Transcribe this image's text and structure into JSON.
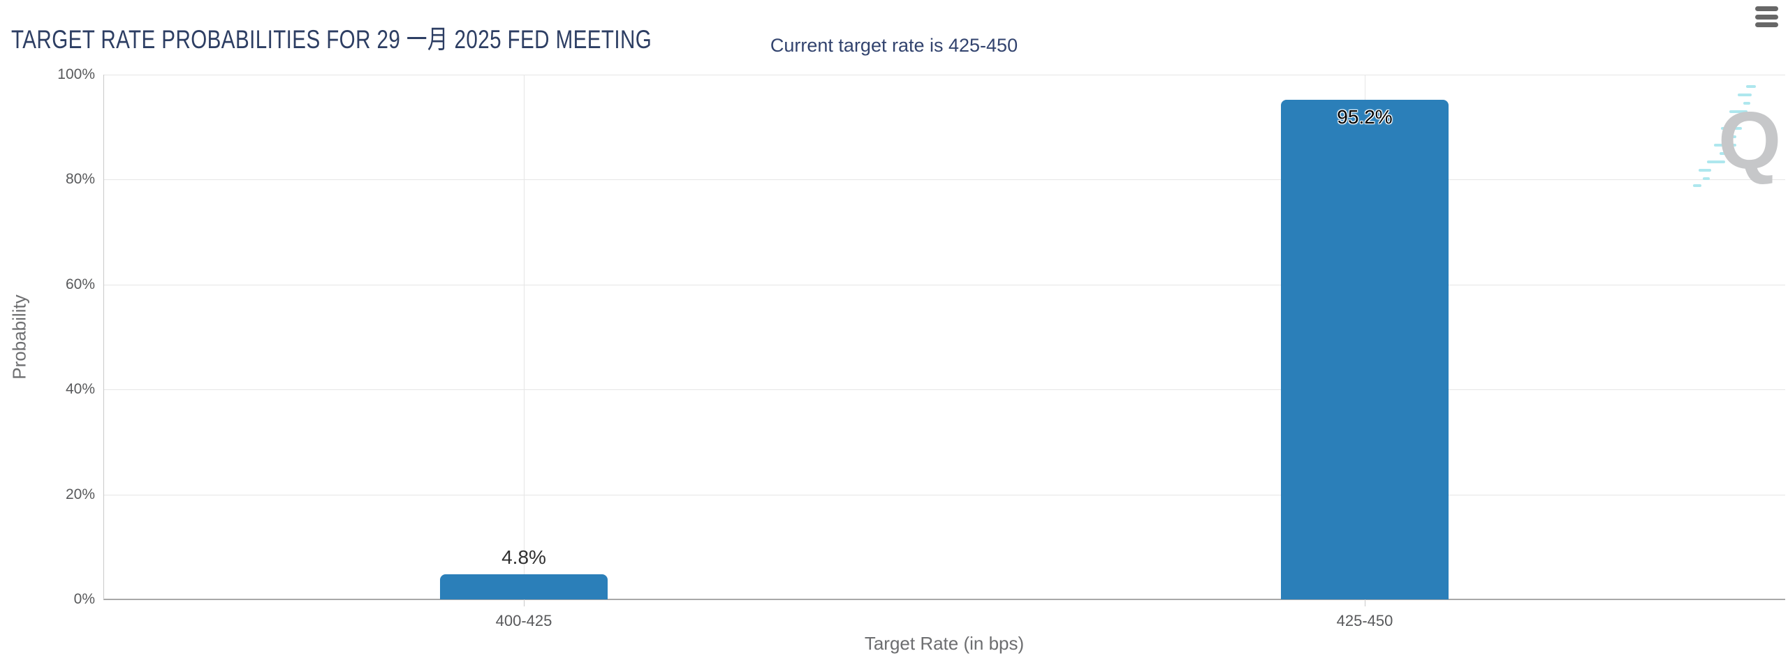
{
  "header": {
    "title": "TARGET RATE PROBABILITIES FOR 29 一月 2025 FED MEETING",
    "menu_icon": "hamburger-menu"
  },
  "subtitle": "Current target rate is 425-450",
  "watermark": {
    "letter": "Q"
  },
  "colors": {
    "title_text": "#2d3e63",
    "subtitle_text": "#32436e",
    "axis_text": "#6d6e70",
    "tick_text": "#58595b",
    "bar": "#2b7fb9",
    "gridline": "#e6e6e6",
    "axis_line": "#a9a9a9",
    "axis_line_light": "#c9c9c9",
    "menu_icon": "#676767",
    "data_label": "#2f2f2f",
    "watermark_q": "#c6c7c9",
    "watermark_dash": "#aee7ee"
  },
  "chart_data": {
    "type": "bar",
    "title": "TARGET RATE PROBABILITIES FOR 29 一月 2025 FED MEETING",
    "subtitle": "Current target rate is 425-450",
    "categories": [
      "400-425",
      "425-450"
    ],
    "values": [
      4.8,
      95.2
    ],
    "value_labels": [
      "4.8%",
      "95.2%"
    ],
    "xlabel": "Target Rate (in bps)",
    "ylabel": "Probability",
    "ylim": [
      0,
      100
    ],
    "yticks": [
      0,
      20,
      40,
      60,
      80,
      100
    ],
    "ytick_labels": [
      "0%",
      "20%",
      "40%",
      "60%",
      "80%",
      "100%"
    ],
    "grid": "horizontal gridlines + vertical gridline at each category center",
    "legend": "none"
  }
}
